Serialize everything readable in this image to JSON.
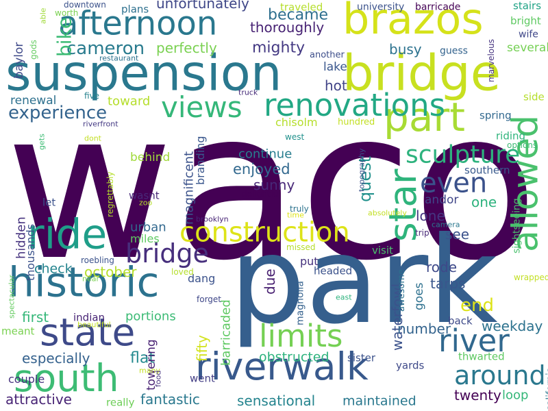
{
  "words": [
    {
      "text": "waco",
      "color": "#440154"
    },
    {
      "text": "park",
      "color": "#355f8d"
    },
    {
      "text": "suspension",
      "color": "#2a788e"
    },
    {
      "text": "bridge",
      "color": "#c8e020"
    },
    {
      "text": "brazos",
      "color": "#d5e21a"
    },
    {
      "text": "afternoon",
      "color": "#2a788e"
    },
    {
      "text": "part",
      "color": "#a8db34"
    },
    {
      "text": "historic",
      "color": "#2c728e"
    },
    {
      "text": "state",
      "color": "#3e4a89"
    },
    {
      "text": "riverwalk",
      "color": "#38598c"
    },
    {
      "text": "south",
      "color": "#3dbc74"
    },
    {
      "text": "ride",
      "color": "#1f9e89"
    },
    {
      "text": "renovations",
      "color": "#22a884"
    },
    {
      "text": "views",
      "color": "#35b779"
    },
    {
      "text": "construction",
      "color": "#dde318"
    },
    {
      "text": "star",
      "color": "#2fb47c"
    },
    {
      "text": "allowed",
      "color": "#4ac16d"
    },
    {
      "text": "river",
      "color": "#31688e"
    },
    {
      "text": "limits",
      "color": "#75d054"
    },
    {
      "text": "around",
      "color": "#2a788e"
    },
    {
      "text": "even",
      "color": "#3b528b"
    },
    {
      "text": "sculpture",
      "color": "#2db27d"
    },
    {
      "text": "experience",
      "color": "#33638d"
    },
    {
      "text": "cameron",
      "color": "#297b8e"
    },
    {
      "text": "bridge",
      "color": "#472f7d"
    },
    {
      "text": "bike",
      "color": "#3cbb75"
    },
    {
      "text": "unfortunately",
      "color": "#3f4788"
    },
    {
      "text": "perfectly",
      "color": "#7ad151"
    },
    {
      "text": "became",
      "color": "#2e6f8e"
    },
    {
      "text": "thoroughly",
      "color": "#482374"
    },
    {
      "text": "mighty",
      "color": "#443983"
    },
    {
      "text": "another",
      "color": "#3d4e8a"
    },
    {
      "text": "lake",
      "color": "#39568c"
    },
    {
      "text": "hot",
      "color": "#414487"
    },
    {
      "text": "busy",
      "color": "#2c728e"
    },
    {
      "text": "several",
      "color": "#75d054"
    },
    {
      "text": "renewal",
      "color": "#2d708e"
    },
    {
      "text": "toward",
      "color": "#b5de2b"
    },
    {
      "text": "quest",
      "color": "#21918c"
    },
    {
      "text": "enjoyed",
      "color": "#31688e"
    },
    {
      "text": "continue",
      "color": "#287d8e"
    },
    {
      "text": "sunny",
      "color": "#482878"
    },
    {
      "text": "one",
      "color": "#2db27d"
    },
    {
      "text": "lone",
      "color": "#453581"
    },
    {
      "text": "see",
      "color": "#3b528b"
    },
    {
      "text": "andor",
      "color": "#404688"
    },
    {
      "text": "magnificent",
      "color": "#3b528b"
    },
    {
      "text": "branding",
      "color": "#39568c"
    },
    {
      "text": "behind",
      "color": "#a0da39"
    },
    {
      "text": "chisolm",
      "color": "#b5de2b"
    },
    {
      "text": "hundred",
      "color": "#c2df23"
    },
    {
      "text": "urban",
      "color": "#31688e"
    },
    {
      "text": "miles",
      "color": "#5ec962"
    },
    {
      "text": "hidden",
      "color": "#46337f"
    },
    {
      "text": "check",
      "color": "#25848e"
    },
    {
      "text": "october",
      "color": "#b5de2b"
    },
    {
      "text": "portions",
      "color": "#3cbb75"
    },
    {
      "text": "first",
      "color": "#35b779"
    },
    {
      "text": "flat",
      "color": "#23898e"
    },
    {
      "text": "fantastic",
      "color": "#2a788e"
    },
    {
      "text": "fifty",
      "color": "#d2e21b"
    },
    {
      "text": "barricaded",
      "color": "#5ec962"
    },
    {
      "text": "due",
      "color": "#482071"
    },
    {
      "text": "put",
      "color": "#46327e"
    },
    {
      "text": "headed",
      "color": "#3b528b"
    },
    {
      "text": "waterfowl",
      "color": "#3b528b"
    },
    {
      "text": "rode",
      "color": "#3e4989"
    },
    {
      "text": "tarps",
      "color": "#39568c"
    },
    {
      "text": "goes",
      "color": "#2d708e"
    },
    {
      "text": "number",
      "color": "#33638d"
    },
    {
      "text": "end",
      "color": "#dde318"
    },
    {
      "text": "weekday",
      "color": "#2c728e"
    },
    {
      "text": "obstructed",
      "color": "#2db27d"
    },
    {
      "text": "sister",
      "color": "#3b528b"
    },
    {
      "text": "yards",
      "color": "#3e4989"
    },
    {
      "text": "twenty",
      "color": "#440154"
    },
    {
      "text": "loop",
      "color": "#35b779"
    },
    {
      "text": "sensational",
      "color": "#25848e"
    },
    {
      "text": "maintained",
      "color": "#2a788e"
    },
    {
      "text": "especially",
      "color": "#34618d"
    },
    {
      "text": "attractive",
      "color": "#482475"
    },
    {
      "text": "couple",
      "color": "#46327e"
    },
    {
      "text": "towering",
      "color": "#482173"
    },
    {
      "text": "went",
      "color": "#433e85"
    },
    {
      "text": "really",
      "color": "#6ece58"
    },
    {
      "text": "baylor",
      "color": "#3e4989"
    },
    {
      "text": "thousands",
      "color": "#3b528b"
    },
    {
      "text": "spectacular",
      "color": "#63cb5f"
    },
    {
      "text": "meant",
      "color": "#7ad151"
    },
    {
      "text": "indian",
      "color": "#482475"
    },
    {
      "text": "dang",
      "color": "#3b528b"
    },
    {
      "text": "forget",
      "color": "#3f4788"
    },
    {
      "text": "magnolia",
      "color": "#34618d"
    },
    {
      "text": "awesome",
      "color": "#2c728e"
    },
    {
      "text": "back",
      "color": "#3e4a89"
    },
    {
      "text": "thwarted",
      "color": "#5ec962"
    },
    {
      "text": "california",
      "color": "#2a788e"
    },
    {
      "text": "riding",
      "color": "#2fb47c"
    },
    {
      "text": "options",
      "color": "#3dbc74"
    },
    {
      "text": "southern",
      "color": "#38598c"
    },
    {
      "text": "spring",
      "color": "#31688e"
    },
    {
      "text": "sightseeing",
      "color": "#4ac16d"
    },
    {
      "text": "wrapped",
      "color": "#c2df23"
    },
    {
      "text": "side",
      "color": "#b5de2b"
    },
    {
      "text": "marvelous",
      "color": "#46337f"
    },
    {
      "text": "guess",
      "color": "#33638d"
    },
    {
      "text": "wife",
      "color": "#3f4788"
    },
    {
      "text": "bright",
      "color": "#5ec962"
    },
    {
      "text": "stairs",
      "color": "#20a386"
    },
    {
      "text": "barricade",
      "color": "#440154"
    },
    {
      "text": "university",
      "color": "#3b528b"
    },
    {
      "text": "plans",
      "color": "#2d708e"
    },
    {
      "text": "traveled",
      "color": "#b5de2b"
    },
    {
      "text": "downtown",
      "color": "#3b528b"
    },
    {
      "text": "worth",
      "color": "#7ad151"
    },
    {
      "text": "able",
      "color": "#a0da39"
    },
    {
      "text": "gods",
      "color": "#63cb5f"
    },
    {
      "text": "restaurant",
      "color": "#2c728e"
    },
    {
      "text": "five",
      "color": "#26828e"
    },
    {
      "text": "riverfront",
      "color": "#443983"
    },
    {
      "text": "truck",
      "color": "#472c7a"
    },
    {
      "text": "gets",
      "color": "#3dbc74"
    },
    {
      "text": "dont",
      "color": "#c2df23"
    },
    {
      "text": "west",
      "color": "#21918c"
    },
    {
      "text": "topography",
      "color": "#3b528b"
    },
    {
      "text": "wasnt",
      "color": "#482878"
    },
    {
      "text": "zoo",
      "color": "#b5de2b"
    },
    {
      "text": "delightful",
      "color": "#440154"
    },
    {
      "text": "regrettably",
      "color": "#b5de2b"
    },
    {
      "text": "let",
      "color": "#3b528b"
    },
    {
      "text": "brooklyn",
      "color": "#482475"
    },
    {
      "text": "truly",
      "color": "#2c728e"
    },
    {
      "text": "time",
      "color": "#dde318"
    },
    {
      "text": "absolutely",
      "color": "#c2df23"
    },
    {
      "text": "camera",
      "color": "#2a788e"
    },
    {
      "text": "trip",
      "color": "#482878"
    },
    {
      "text": "missed",
      "color": "#b5de2b"
    },
    {
      "text": "visit",
      "color": "#4ac16d"
    },
    {
      "text": "roebling",
      "color": "#3b528b"
    },
    {
      "text": "near",
      "color": "#7ad151"
    },
    {
      "text": "loved",
      "color": "#b5de2b"
    },
    {
      "text": "east",
      "color": "#2db27d"
    },
    {
      "text": "beautiful",
      "color": "#c2df23"
    },
    {
      "text": "many",
      "color": "#c2df23"
    },
    {
      "text": "food",
      "color": "#46327e"
    }
  ]
}
